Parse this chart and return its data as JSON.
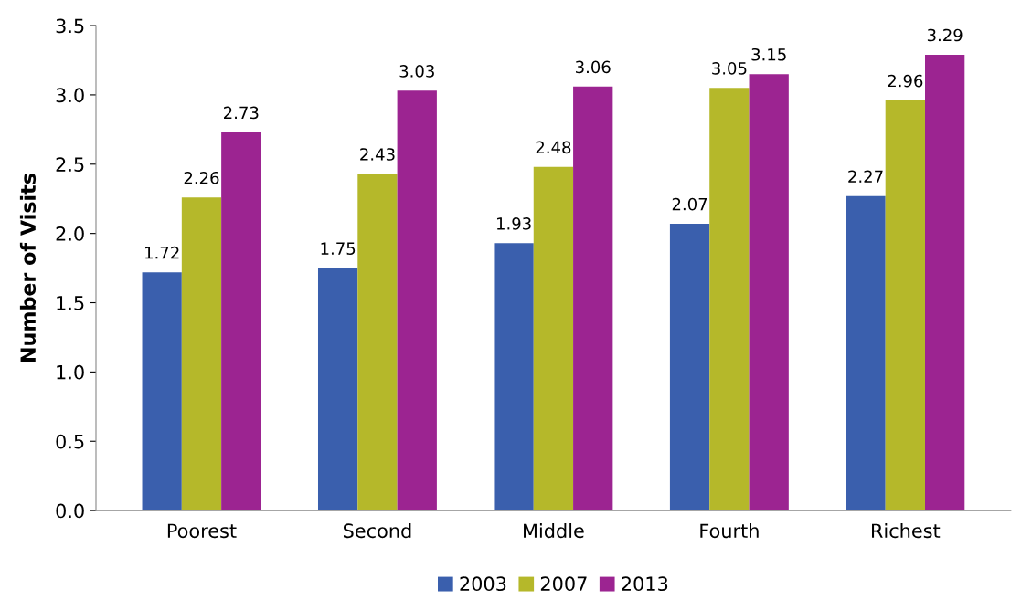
{
  "chart_data": {
    "type": "bar",
    "ylabel": "Number of Visits",
    "categories": [
      "Poorest",
      "Second",
      "Middle",
      "Fourth",
      "Richest"
    ],
    "series": [
      {
        "name": "2003",
        "color": "#3a5fad",
        "values": [
          1.72,
          1.75,
          1.93,
          2.07,
          2.27
        ]
      },
      {
        "name": "2007",
        "color": "#b5b82a",
        "values": [
          2.26,
          2.43,
          2.48,
          3.05,
          2.96
        ]
      },
      {
        "name": "2013",
        "color": "#9c2491",
        "values": [
          2.73,
          3.03,
          3.06,
          3.15,
          3.29
        ]
      }
    ],
    "ylim": [
      0,
      3.5
    ],
    "yticks": [
      {
        "value": 0,
        "label": "0.0"
      },
      {
        "value": 0.5,
        "label": "0.5"
      },
      {
        "value": 1,
        "label": "1.0"
      },
      {
        "value": 1.5,
        "label": "1.5"
      },
      {
        "value": 2,
        "label": "2.0"
      },
      {
        "value": 2.5,
        "label": "2.5"
      },
      {
        "value": 3,
        "label": "3.0"
      },
      {
        "value": 3.5,
        "label": "3.5"
      }
    ],
    "data_labels": true,
    "grid": false,
    "legend": "bottom"
  }
}
